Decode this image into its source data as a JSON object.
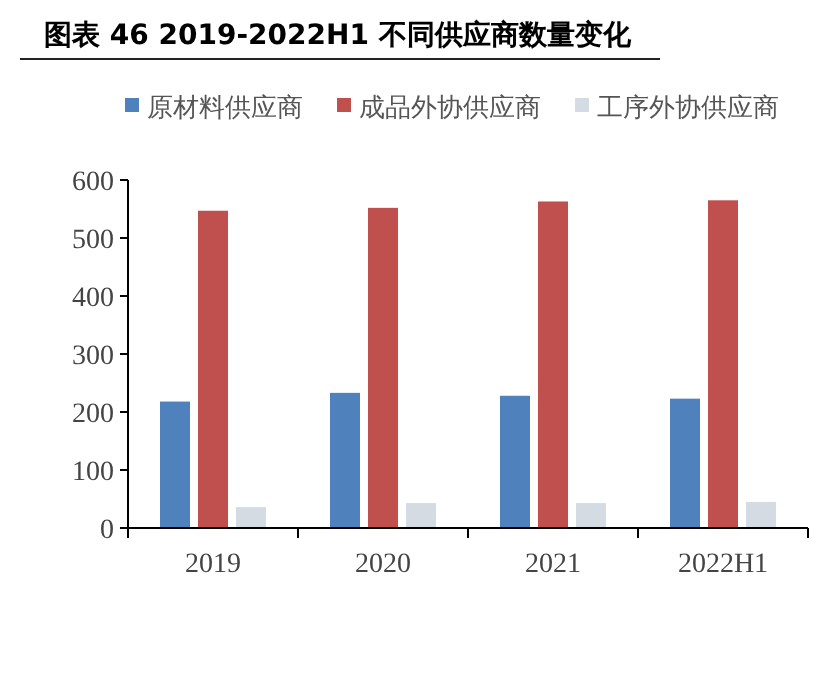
{
  "chart_data": {
    "type": "bar",
    "title": "图表 46 2019-2022H1 不同供应商数量变化",
    "categories": [
      "2019",
      "2020",
      "2021",
      "2022H1"
    ],
    "series": [
      {
        "name": "原材料供应商",
        "color": "#4f81bd",
        "values": [
          218,
          233,
          228,
          223
        ]
      },
      {
        "name": "成品外协供应商",
        "color": "#c0504d",
        "values": [
          547,
          552,
          563,
          565
        ]
      },
      {
        "name": "工序外协供应商",
        "color": "#d5dbe3",
        "values": [
          36,
          43,
          43,
          45
        ]
      }
    ],
    "ylim": [
      0,
      600
    ],
    "yticks": [
      0,
      100,
      200,
      300,
      400,
      500,
      600
    ],
    "grid": false,
    "legend": "top"
  }
}
